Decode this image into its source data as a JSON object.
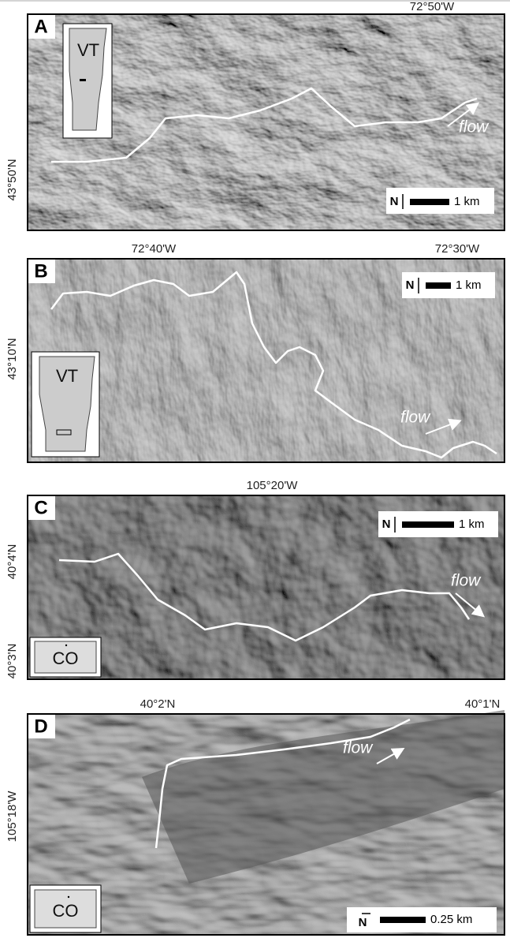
{
  "panels": [
    {
      "label": "A",
      "top_labels": [
        "72°50'W"
      ],
      "left_labels": [
        "43°50'N"
      ],
      "inset": "VT",
      "flow": "flow",
      "north": "N",
      "scale": "1 km"
    },
    {
      "label": "B",
      "top_labels": [
        "72°40'W",
        "72°30'W"
      ],
      "left_labels": [
        "43°10'N"
      ],
      "inset": "VT",
      "flow": "flow",
      "north": "N",
      "scale": "1 km"
    },
    {
      "label": "C",
      "top_labels": [
        "105°20'W"
      ],
      "left_labels": [
        "40°4'N",
        "40°3'N"
      ],
      "inset": "CO",
      "flow": "flow",
      "north": "N",
      "scale": "1 km"
    },
    {
      "label": "D",
      "top_labels": [
        "40°2'N",
        "40°1'N"
      ],
      "left_labels": [
        "105°18'W"
      ],
      "inset": "CO",
      "flow": "flow",
      "north": "N",
      "scale": "0.25 km"
    }
  ]
}
